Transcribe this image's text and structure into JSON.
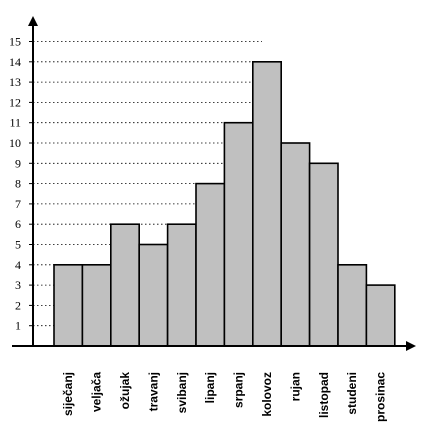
{
  "chart_data": {
    "type": "bar",
    "title": "",
    "xlabel": "",
    "ylabel": "",
    "categories": [
      "siječanj",
      "veljača",
      "ožujak",
      "travanj",
      "svibanj",
      "lipanj",
      "srpanj",
      "kolovoz",
      "rujan",
      "listopad",
      "studeni",
      "prosinac"
    ],
    "values": [
      4,
      4,
      6,
      5,
      6,
      8,
      11,
      14,
      10,
      9,
      4,
      3
    ],
    "ylim": [
      0,
      15
    ],
    "yticks": [
      1,
      2,
      3,
      4,
      5,
      6,
      7,
      8,
      9,
      10,
      11,
      12,
      13,
      14,
      15
    ],
    "grid": "horizontal dotted lines at integer values",
    "bar_color": "#c0c0c0",
    "edge_color": "#000000"
  }
}
